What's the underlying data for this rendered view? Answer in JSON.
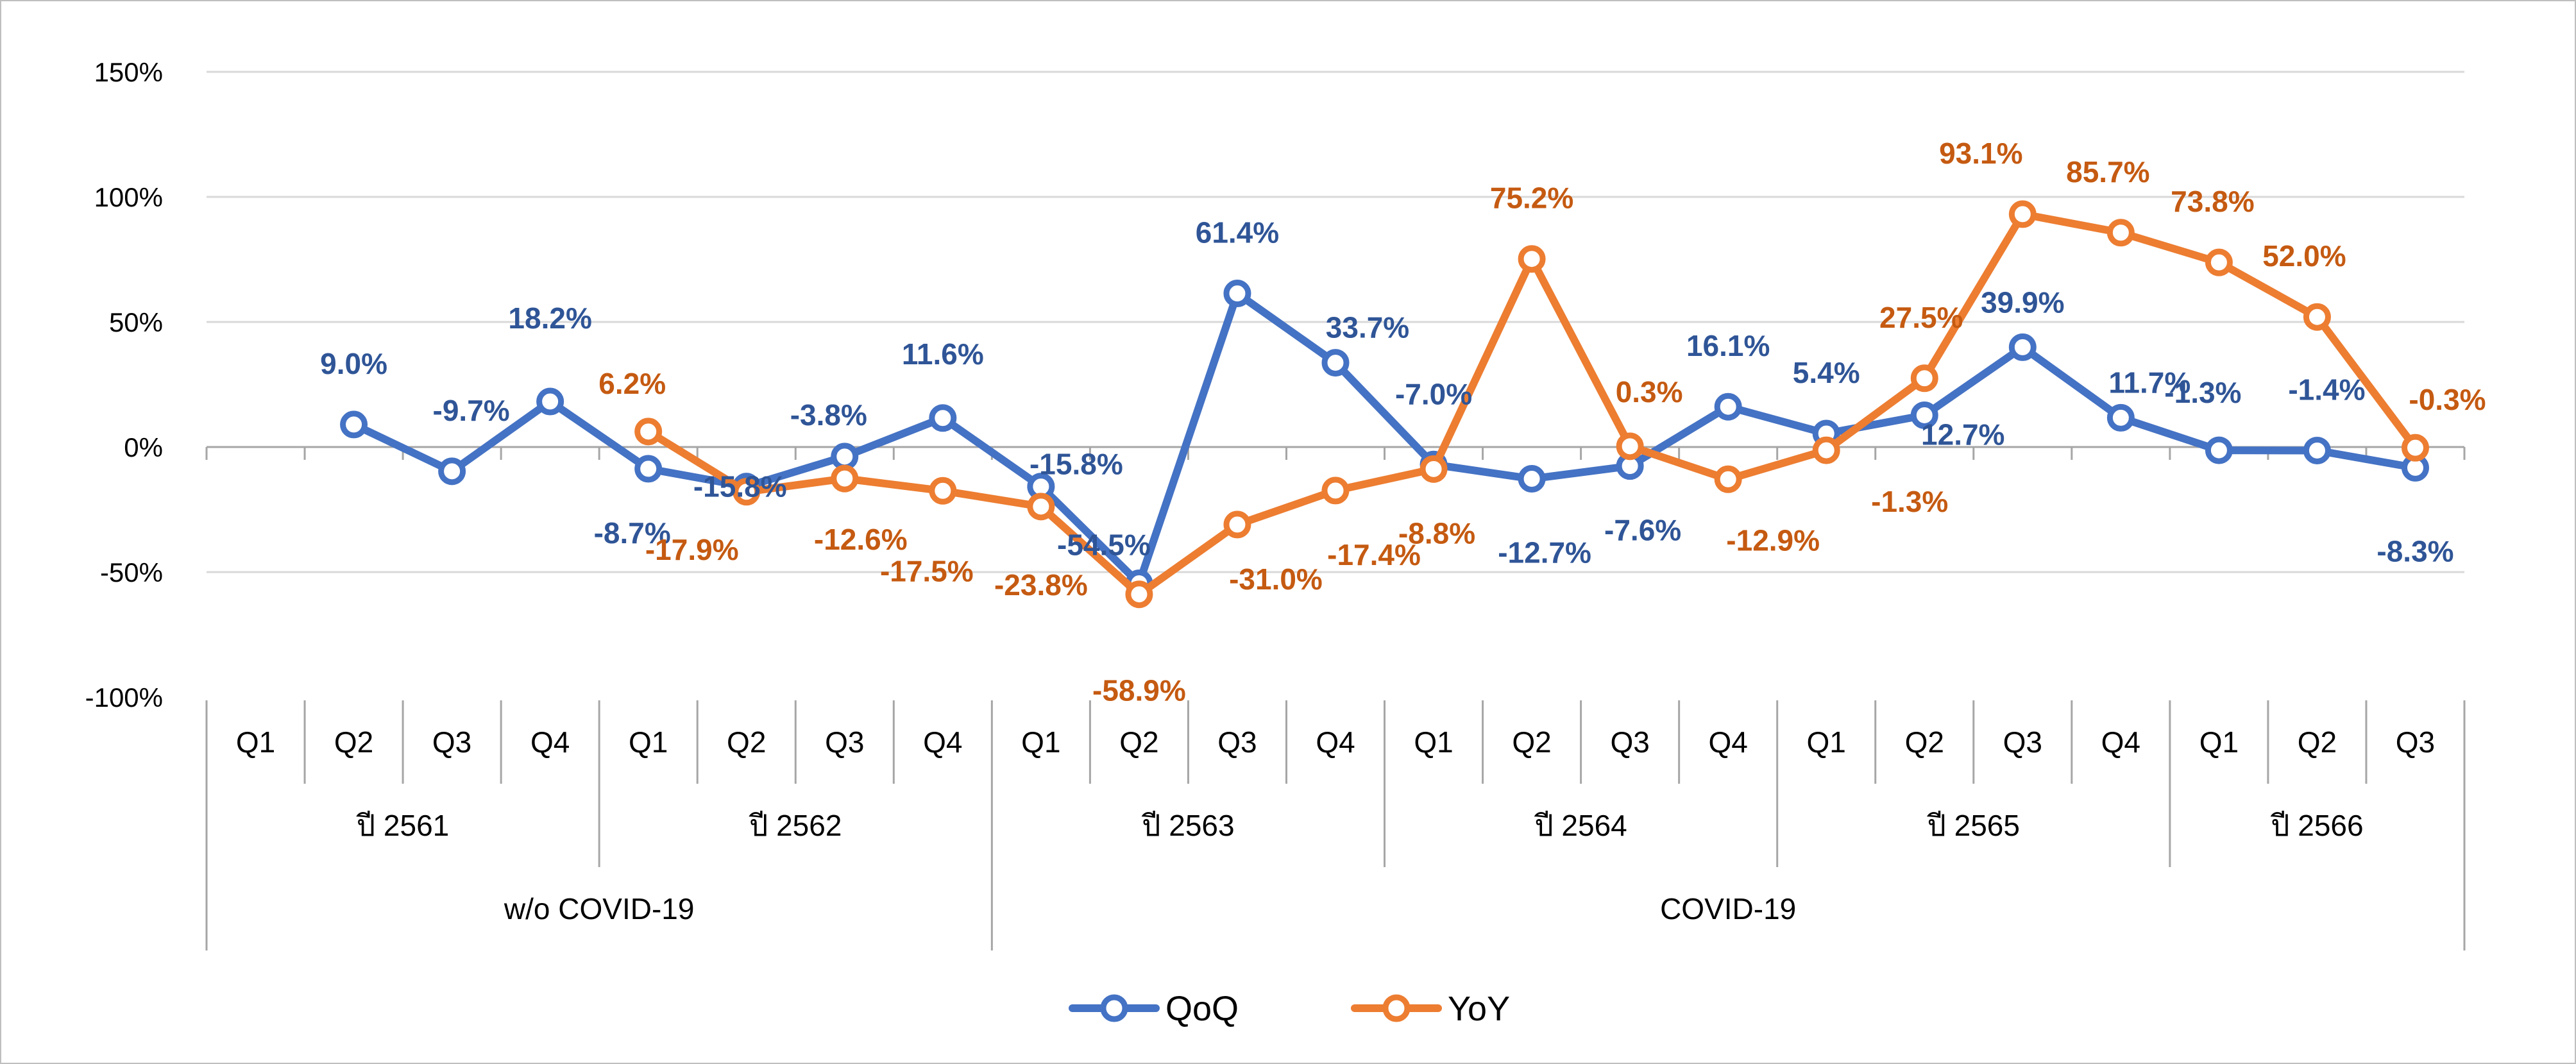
{
  "chart_data": {
    "type": "line",
    "title": "",
    "xlabel": "",
    "ylabel": "",
    "ylim": [
      -100,
      150
    ],
    "yticks": [
      150,
      100,
      50,
      0,
      -50,
      -100
    ],
    "ytick_labels": [
      "150%",
      "100%",
      "50%",
      "0%",
      "-50%",
      "-100%"
    ],
    "grid": true,
    "legend_position": "bottom-center",
    "categories": [
      "Q1",
      "Q2",
      "Q3",
      "Q4",
      "Q1",
      "Q2",
      "Q3",
      "Q4",
      "Q1",
      "Q2",
      "Q3",
      "Q4",
      "Q1",
      "Q2",
      "Q3",
      "Q4",
      "Q1",
      "Q2",
      "Q3",
      "Q4",
      "Q1",
      "Q2",
      "Q3"
    ],
    "year_groups": [
      {
        "label": "ปี 2561",
        "count": 4
      },
      {
        "label": "ปี 2562",
        "count": 4
      },
      {
        "label": "ปี 2563",
        "count": 4
      },
      {
        "label": "ปี 2564",
        "count": 4
      },
      {
        "label": "ปี 2565",
        "count": 4
      },
      {
        "label": "ปี 2566",
        "count": 3
      }
    ],
    "period_groups": [
      {
        "label": "w/o COVID-19",
        "count": 8
      },
      {
        "label": "COVID-19",
        "count": 15
      }
    ],
    "series": [
      {
        "name": "QoQ",
        "color": "#4472C4",
        "label_color": "#2F5597",
        "values": [
          null,
          9.0,
          -9.7,
          18.2,
          -8.7,
          -15.8,
          -3.8,
          11.6,
          -15.8,
          -54.5,
          61.4,
          33.7,
          -7.0,
          -12.7,
          -7.6,
          16.1,
          5.4,
          12.7,
          39.9,
          11.7,
          -1.3,
          -1.4,
          -8.3
        ],
        "labels": [
          null,
          "9.0%",
          "-9.7%",
          "18.2%",
          "-8.7%",
          "-15.8%",
          "-3.8%",
          "11.6%",
          "-15.8%",
          "-54.5%",
          "61.4%",
          "33.7%",
          "-7.0%",
          "-12.7%",
          "-7.6%",
          "16.1%",
          "5.4%",
          "12.7%",
          "39.9%",
          "11.7%",
          "-1.3%",
          "-1.4%",
          "-8.3%"
        ]
      },
      {
        "name": "YoY",
        "color": "#ED7D31",
        "label_color": "#C55A11",
        "values": [
          null,
          null,
          null,
          null,
          6.2,
          -17.9,
          -12.6,
          -17.5,
          -23.8,
          -58.9,
          -31.0,
          -17.4,
          -8.8,
          75.2,
          0.3,
          -12.9,
          -1.3,
          27.5,
          93.1,
          85.7,
          73.8,
          52.0,
          -0.3
        ],
        "labels": [
          null,
          null,
          null,
          null,
          "6.2%",
          "-17.9%",
          "-12.6%",
          "-17.5%",
          "-23.8%",
          "-58.9%",
          "-31.0%",
          "-17.4%",
          "-8.8%",
          "75.2%",
          "0.3%",
          "-12.9%",
          "-1.3%",
          "27.5%",
          "93.1%",
          "85.7%",
          "73.8%",
          "52.0%",
          "-0.3%"
        ]
      }
    ]
  }
}
